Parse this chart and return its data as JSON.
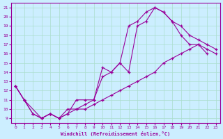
{
  "xlabel": "Windchill (Refroidissement éolien,°C)",
  "bg_color": "#cceeff",
  "grid_color": "#aaddcc",
  "line_color": "#990099",
  "xlim": [
    -0.5,
    23.5
  ],
  "ylim": [
    8.5,
    21.5
  ],
  "yticks": [
    9,
    10,
    11,
    12,
    13,
    14,
    15,
    16,
    17,
    18,
    19,
    20,
    21
  ],
  "xticks": [
    0,
    1,
    2,
    3,
    4,
    5,
    6,
    7,
    8,
    9,
    10,
    11,
    12,
    13,
    14,
    15,
    16,
    17,
    18,
    19,
    20,
    21,
    22,
    23
  ],
  "curve1_x": [
    0,
    1,
    2,
    3,
    4,
    5,
    6,
    7,
    8,
    9,
    10,
    11,
    12,
    13,
    14,
    15,
    16,
    17,
    18,
    19,
    20,
    21,
    22
  ],
  "curve1_y": [
    12.5,
    11.0,
    9.5,
    9.0,
    9.5,
    9.0,
    10.0,
    10.0,
    10.5,
    11.0,
    13.5,
    14.0,
    15.0,
    19.0,
    19.5,
    20.5,
    21.0,
    20.5,
    19.5,
    18.0,
    17.0,
    17.0,
    16.0
  ],
  "curve2_x": [
    0,
    1,
    3,
    4,
    5,
    6,
    7,
    8,
    9,
    10,
    11,
    12,
    13,
    14,
    15,
    16,
    17,
    18,
    19,
    20,
    21,
    22,
    23
  ],
  "curve2_y": [
    12.5,
    11.0,
    9.0,
    9.5,
    9.0,
    9.5,
    11.0,
    11.0,
    11.0,
    14.5,
    14.0,
    15.0,
    14.0,
    19.0,
    19.5,
    21.0,
    20.5,
    19.5,
    19.0,
    18.0,
    17.5,
    17.0,
    16.5
  ],
  "curve3_x": [
    0,
    1,
    2,
    3,
    4,
    5,
    6,
    7,
    8,
    9,
    10,
    11,
    12,
    13,
    14,
    15,
    16,
    17,
    18,
    19,
    20,
    21,
    22,
    23
  ],
  "curve3_y": [
    12.5,
    11.0,
    9.5,
    9.0,
    9.5,
    9.0,
    9.5,
    10.0,
    10.0,
    10.5,
    11.0,
    11.5,
    12.0,
    12.5,
    13.0,
    13.5,
    14.0,
    15.0,
    15.5,
    16.0,
    16.5,
    17.0,
    16.5,
    16.0
  ]
}
